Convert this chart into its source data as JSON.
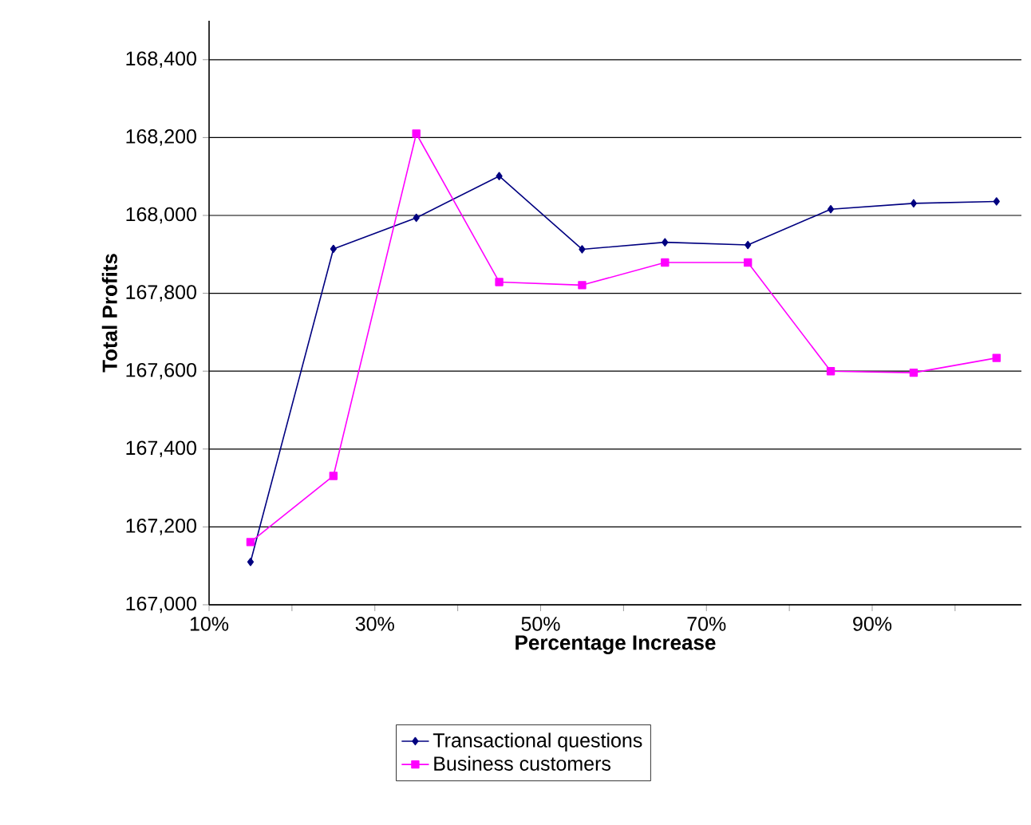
{
  "chart_data": {
    "type": "line",
    "xlabel": "Percentage Increase",
    "ylabel": "Total Profits",
    "x": [
      15,
      25,
      35,
      45,
      55,
      65,
      75,
      85,
      95,
      105
    ],
    "series": [
      {
        "name": "Transactional questions",
        "color": "#000080",
        "marker": "diamond",
        "values": [
          167110,
          167914,
          167994,
          168101,
          167913,
          167931,
          167924,
          168016,
          168031,
          168036
        ]
      },
      {
        "name": "Business customers",
        "color": "#ff00ff",
        "marker": "square",
        "values": [
          167161,
          167331,
          168210,
          167829,
          167821,
          167879,
          167879,
          167600,
          167596,
          167634
        ]
      }
    ],
    "xlim": [
      10,
      108
    ],
    "ylim": [
      167000,
      168500
    ],
    "xticks": [
      {
        "value": 10,
        "label": "10%"
      },
      {
        "value": 20,
        "label": null
      },
      {
        "value": 30,
        "label": "30%"
      },
      {
        "value": 40,
        "label": null
      },
      {
        "value": 50,
        "label": "50%"
      },
      {
        "value": 60,
        "label": null
      },
      {
        "value": 70,
        "label": "70%"
      },
      {
        "value": 80,
        "label": null
      },
      {
        "value": 90,
        "label": "90%"
      },
      {
        "value": 100,
        "label": null
      }
    ],
    "yticks": [
      {
        "value": 167000,
        "label": "167,000"
      },
      {
        "value": 167200,
        "label": "167,200"
      },
      {
        "value": 167400,
        "label": "167,400"
      },
      {
        "value": 167600,
        "label": "167,600"
      },
      {
        "value": 167800,
        "label": "167,800"
      },
      {
        "value": 168000,
        "label": "168,000"
      },
      {
        "value": 168200,
        "label": "168,200"
      },
      {
        "value": 168400,
        "label": "168,400"
      }
    ],
    "grid": "y",
    "legend": "bottom",
    "line_style": "solid"
  }
}
